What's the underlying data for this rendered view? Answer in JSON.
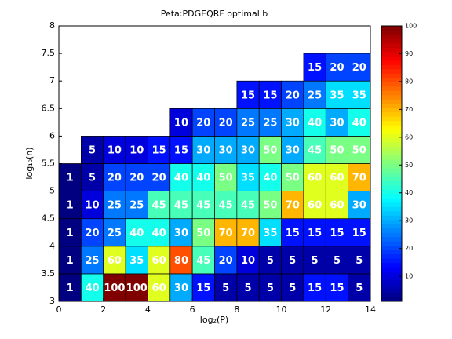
{
  "chart_data": {
    "type": "heatmap",
    "title": "Peta:PDGEQRF optimal b",
    "xlabel": "log₂(P)",
    "ylabel": "log₁₀(n)",
    "xlim": [
      0,
      14
    ],
    "ylim": [
      3,
      8
    ],
    "xticks": [
      0,
      2,
      4,
      6,
      8,
      10,
      12,
      14
    ],
    "yticks": [
      3,
      3.5,
      4,
      4.5,
      5,
      5.5,
      6,
      6.5,
      7,
      7.5,
      8
    ],
    "xbins": [
      0,
      1,
      2,
      3,
      4,
      5,
      6,
      7,
      8,
      9,
      10,
      11,
      12,
      13,
      14
    ],
    "ybins": [
      3,
      3.5,
      4,
      4.5,
      5,
      5.5,
      6,
      6.5,
      7,
      7.5,
      8
    ],
    "values": [
      [
        1,
        40,
        100,
        100,
        60,
        30,
        15,
        5,
        5,
        5,
        5,
        15,
        15,
        5
      ],
      [
        1,
        25,
        60,
        35,
        60,
        80,
        45,
        20,
        10,
        5,
        5,
        5,
        5,
        5
      ],
      [
        1,
        20,
        25,
        40,
        40,
        30,
        50,
        70,
        70,
        35,
        15,
        15,
        15,
        15
      ],
      [
        1,
        10,
        25,
        25,
        45,
        45,
        45,
        45,
        45,
        50,
        70,
        60,
        60,
        30
      ],
      [
        1,
        5,
        20,
        20,
        20,
        40,
        40,
        50,
        35,
        40,
        50,
        60,
        60,
        70
      ],
      [
        null,
        5,
        10,
        10,
        15,
        15,
        30,
        30,
        30,
        50,
        30,
        45,
        50,
        50
      ],
      [
        null,
        null,
        null,
        null,
        null,
        10,
        20,
        20,
        25,
        25,
        30,
        40,
        30,
        40
      ],
      [
        null,
        null,
        null,
        null,
        null,
        null,
        null,
        null,
        15,
        15,
        20,
        25,
        35,
        35
      ],
      [
        null,
        null,
        null,
        null,
        null,
        null,
        null,
        null,
        null,
        null,
        null,
        15,
        20,
        20
      ],
      [
        null,
        null,
        null,
        null,
        null,
        null,
        null,
        null,
        null,
        null,
        null,
        null,
        null,
        null
      ]
    ],
    "colormap": "jet",
    "colorbar": {
      "clim": [
        1,
        100
      ],
      "ticks": [
        10,
        20,
        30,
        40,
        50,
        60,
        70,
        80,
        90,
        100
      ]
    }
  }
}
